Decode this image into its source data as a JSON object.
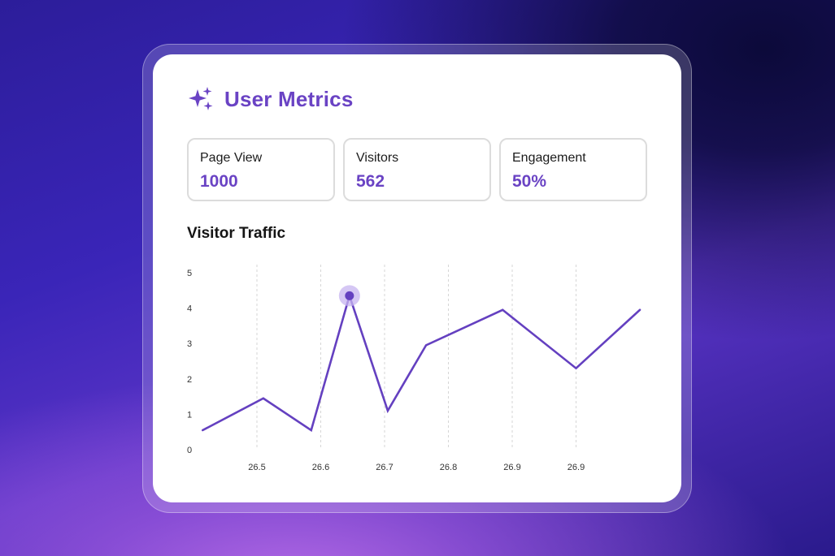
{
  "header": {
    "title": "User Metrics",
    "icon": "sparkle-icon"
  },
  "stats": [
    {
      "label": "Page View",
      "value": "1000"
    },
    {
      "label": "Visitors",
      "value": "562"
    },
    {
      "label": "Engagement",
      "value": "50%"
    }
  ],
  "colors": {
    "accent": "#6a43c4",
    "line": "#6440c0",
    "highlight": "#c7b4f0"
  },
  "chart_data": {
    "type": "line",
    "title": "Visitor Traffic",
    "xlabel": "",
    "ylabel": "",
    "ylim": [
      0,
      5
    ],
    "y_ticks": [
      "0",
      "1",
      "2",
      "3",
      "4",
      "5"
    ],
    "x_tick_labels": [
      "26.5",
      "26.6",
      "26.7",
      "26.8",
      "26.9",
      "26.9"
    ],
    "grid": "vertical dashed",
    "series": [
      {
        "x_index": [
          0,
          0.95,
          1.7,
          2.3,
          2.9,
          3.5,
          4.7,
          5.85,
          6.85
        ],
        "values": [
          0.55,
          1.45,
          0.55,
          4.35,
          1.1,
          2.95,
          3.95,
          2.3,
          3.95
        ]
      }
    ],
    "highlight_index": 3
  }
}
